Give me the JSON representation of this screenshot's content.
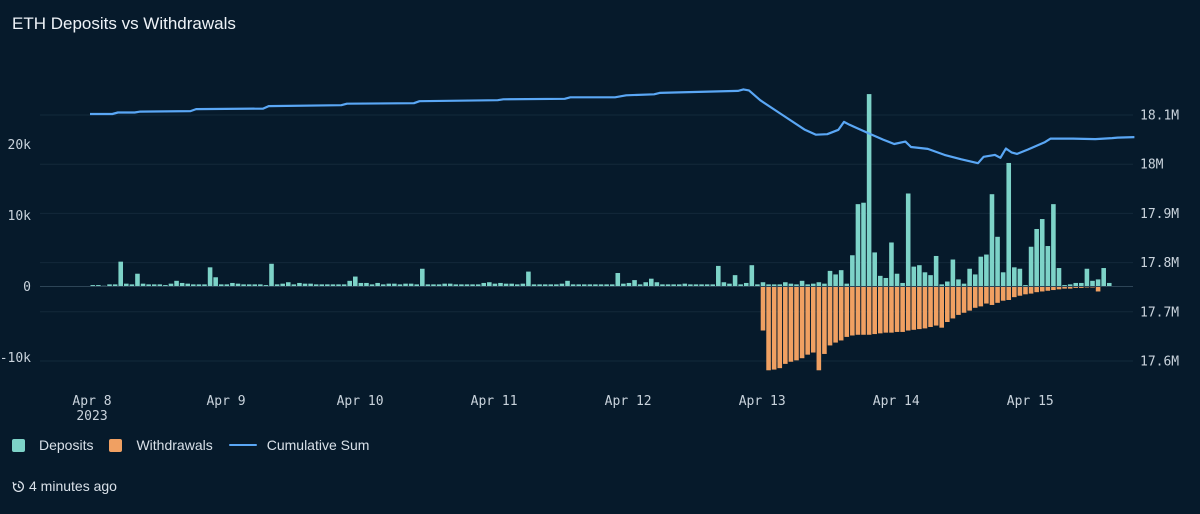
{
  "title": "ETH Deposits vs Withdrawals",
  "updated": "4 minutes ago",
  "colors": {
    "deposits": "#7dd3c8",
    "withdrawals": "#f0a062",
    "cumulative": "#5aa7f5",
    "background": "#061a2b"
  },
  "legend": [
    {
      "label": "Deposits",
      "kind": "bar",
      "color": "#7dd3c8"
    },
    {
      "label": "Withdrawals",
      "kind": "bar",
      "color": "#f0a062"
    },
    {
      "label": "Cumulative Sum",
      "kind": "line",
      "color": "#5aa7f5"
    }
  ],
  "chart_data": {
    "type": "bar+line",
    "x_unit": "hour",
    "x_range": [
      "2023-04-08T00:00",
      "2023-04-15T10:00"
    ],
    "x_ticks": [
      {
        "label": "Apr 8",
        "sublabel": "2023",
        "hours": 0
      },
      {
        "label": "Apr 9",
        "hours": 24
      },
      {
        "label": "Apr 10",
        "hours": 48
      },
      {
        "label": "Apr 11",
        "hours": 72
      },
      {
        "label": "Apr 12",
        "hours": 96
      },
      {
        "label": "Apr 13",
        "hours": 120
      },
      {
        "label": "Apr 14",
        "hours": 144
      },
      {
        "label": "Apr 15",
        "hours": 168
      }
    ],
    "y_left": {
      "ticks": [
        20000,
        10000,
        0,
        -10000
      ],
      "tick_labels": [
        "20k",
        "10k",
        "0",
        "-10k"
      ],
      "range": [
        -12000,
        30000
      ]
    },
    "y_right": {
      "ticks": [
        18100000,
        18000000,
        17900000,
        17800000,
        17700000,
        17600000
      ],
      "tick_labels": [
        "18.1M",
        "18M",
        "17.9M",
        "17.8M",
        "17.7M",
        "17.6M"
      ],
      "range": [
        17560000,
        18180000
      ]
    },
    "series": [
      {
        "name": "Deposits",
        "axis": "left",
        "start_hour": 0,
        "step_hours": 1,
        "values": [
          200,
          200,
          100,
          300,
          300,
          3500,
          400,
          300,
          1800,
          400,
          300,
          300,
          300,
          200,
          400,
          800,
          500,
          400,
          300,
          300,
          300,
          2700,
          1300,
          300,
          300,
          500,
          400,
          300,
          300,
          300,
          300,
          200,
          3200,
          300,
          400,
          600,
          300,
          500,
          400,
          400,
          300,
          300,
          300,
          300,
          300,
          300,
          800,
          1400,
          500,
          500,
          300,
          500,
          300,
          400,
          400,
          300,
          400,
          400,
          300,
          2500,
          300,
          300,
          300,
          400,
          400,
          300,
          300,
          300,
          300,
          300,
          500,
          600,
          400,
          500,
          400,
          400,
          300,
          400,
          2100,
          300,
          300,
          300,
          300,
          300,
          400,
          800,
          300,
          300,
          300,
          300,
          300,
          300,
          300,
          300,
          1900,
          400,
          500,
          900,
          300,
          600,
          1100,
          600,
          300,
          300,
          300,
          300,
          400,
          300,
          300,
          300,
          300,
          300,
          2900,
          600,
          400,
          1600,
          300,
          500,
          3000,
          300,
          600,
          300,
          300,
          300,
          600,
          400,
          300,
          800,
          300,
          400,
          600,
          400,
          2200,
          1700,
          2300,
          400,
          4400,
          11600,
          11800,
          27100,
          4800,
          1500,
          1200,
          6200,
          1800,
          500,
          13100,
          2800,
          3000,
          2000,
          1600,
          4300,
          300,
          700,
          3800,
          1000,
          400,
          2500,
          1700,
          4200,
          4500,
          13000,
          7000,
          2000,
          17400,
          2700,
          2500,
          200,
          5600,
          8100,
          9500,
          5700,
          11600,
          2600,
          200,
          300,
          500,
          500,
          2500,
          800,
          1000,
          2600,
          500
        ],
        "note": "hourly values read from bars"
      },
      {
        "name": "Withdrawals",
        "axis": "left",
        "start_hour": 120,
        "step_hours": 1,
        "values": [
          -6200,
          -11800,
          -11700,
          -11500,
          -10900,
          -10600,
          -10400,
          -10100,
          -9600,
          -9300,
          -11800,
          -9500,
          -8300,
          -7900,
          -7600,
          -7100,
          -6900,
          -6800,
          -6800,
          -6800,
          -6700,
          -6600,
          -6500,
          -6500,
          -6400,
          -6400,
          -6200,
          -6100,
          -6000,
          -5900,
          -5700,
          -5500,
          -5800,
          -5000,
          -4500,
          -4000,
          -3700,
          -3400,
          -3000,
          -2800,
          -2400,
          -2600,
          -2300,
          -2000,
          -1900,
          -1500,
          -1300,
          -1100,
          -1000,
          -800,
          -700,
          -600,
          -500,
          -400,
          -300,
          -300,
          -200,
          -200,
          -100,
          -100,
          -700
        ]
      },
      {
        "name": "Cumulative Sum",
        "axis": "right",
        "points": [
          [
            0,
            18102000
          ],
          [
            4,
            18102000
          ],
          [
            5,
            18105000
          ],
          [
            8,
            18105000
          ],
          [
            9,
            18107000
          ],
          [
            18,
            18108000
          ],
          [
            19,
            18112000
          ],
          [
            31,
            18113000
          ],
          [
            32,
            18118000
          ],
          [
            45,
            18120000
          ],
          [
            46,
            18123000
          ],
          [
            58,
            18124000
          ],
          [
            59,
            18128000
          ],
          [
            73,
            18130000
          ],
          [
            74,
            18132000
          ],
          [
            85,
            18133000
          ],
          [
            86,
            18136000
          ],
          [
            94,
            18136000
          ],
          [
            96,
            18140000
          ],
          [
            101,
            18142000
          ],
          [
            102,
            18145000
          ],
          [
            116,
            18149000
          ],
          [
            117,
            18152000
          ],
          [
            118,
            18150000
          ],
          [
            120,
            18130000
          ],
          [
            124,
            18100000
          ],
          [
            128,
            18070000
          ],
          [
            130,
            18060000
          ],
          [
            132,
            18061000
          ],
          [
            134,
            18070000
          ],
          [
            135,
            18086000
          ],
          [
            136,
            18080000
          ],
          [
            138,
            18070000
          ],
          [
            140,
            18060000
          ],
          [
            142,
            18050000
          ],
          [
            144,
            18041000
          ],
          [
            146,
            18046000
          ],
          [
            147,
            18035000
          ],
          [
            150,
            18031000
          ],
          [
            153,
            18019000
          ],
          [
            156,
            18010000
          ],
          [
            159,
            18002000
          ],
          [
            160,
            18015000
          ],
          [
            162,
            18019000
          ],
          [
            163,
            18013000
          ],
          [
            164,
            18032000
          ],
          [
            165,
            18024000
          ],
          [
            166,
            18021000
          ],
          [
            168,
            18030000
          ],
          [
            170,
            18040000
          ],
          [
            171,
            18045000
          ],
          [
            172,
            18052000
          ],
          [
            176,
            18052000
          ],
          [
            180,
            18051000
          ],
          [
            183,
            18053000
          ],
          [
            184,
            18054000
          ],
          [
            187,
            18055000
          ]
        ]
      }
    ],
    "grid": "horizontal",
    "legend_position": "bottom-left"
  }
}
